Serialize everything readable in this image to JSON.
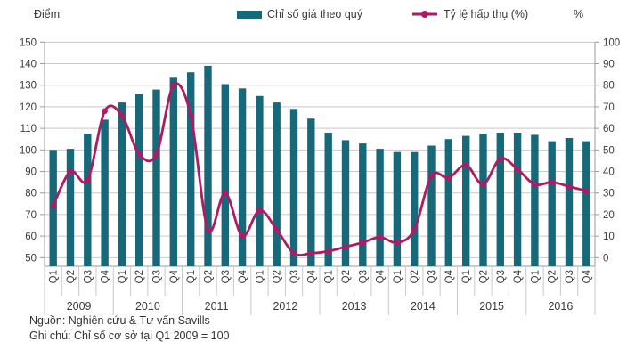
{
  "header": {
    "left_axis_title": "Điểm",
    "right_axis_title": "%"
  },
  "legend": {
    "items": [
      {
        "label": "Chỉ số giá theo quý",
        "swatch": "bar-swatch"
      },
      {
        "label": "Tỷ lệ hấp thụ (%)",
        "swatch": "line-marker-swatch"
      }
    ]
  },
  "footnotes": {
    "source": "Nguồn: Nghiên cứu & Tư vấn Savills",
    "note": "Ghi chú: Chỉ số cơ sở tại Q1 2009 = 100"
  },
  "colors": {
    "bar": "#17697A",
    "line": "#AE1A64",
    "grid": "#C9C9C9",
    "axis": "#9B9B9B",
    "text": "#3A3A3A"
  },
  "chart_data": {
    "type": "combo",
    "subtype": [
      "bar",
      "line"
    ],
    "years": [
      "2009",
      "2010",
      "2011",
      "2012",
      "2013",
      "2014",
      "2015",
      "2016"
    ],
    "quarters_per_year": [
      "Q1",
      "Q2",
      "Q3",
      "Q4"
    ],
    "series": [
      {
        "name": "Chỉ số giá theo quý",
        "type": "bar",
        "axis": "left",
        "values": [
          100,
          100.5,
          107.5,
          114,
          122,
          126,
          128,
          133.5,
          136,
          139,
          130.5,
          128.5,
          125,
          122,
          119,
          114.5,
          108,
          104.5,
          103,
          100.5,
          99,
          99,
          102,
          105,
          106.5,
          107.5,
          108,
          108,
          107,
          104,
          105.5,
          104
        ]
      },
      {
        "name": "Tỷ lệ hấp thụ (%)",
        "type": "line",
        "axis": "right",
        "values": [
          24,
          40,
          36,
          68,
          66,
          48,
          48,
          80,
          66,
          13,
          30,
          10,
          22,
          13,
          2,
          2,
          3,
          5,
          7,
          9.5,
          7,
          13,
          38,
          37,
          43,
          34,
          46,
          41,
          34,
          35,
          33,
          31
        ]
      }
    ],
    "left_axis": {
      "title": "Điểm",
      "min": 50,
      "max": 150,
      "step": 10
    },
    "right_axis": {
      "title": "%",
      "min": 0,
      "max": 100,
      "step": 10
    },
    "grid": true,
    "legend_position": "top"
  }
}
